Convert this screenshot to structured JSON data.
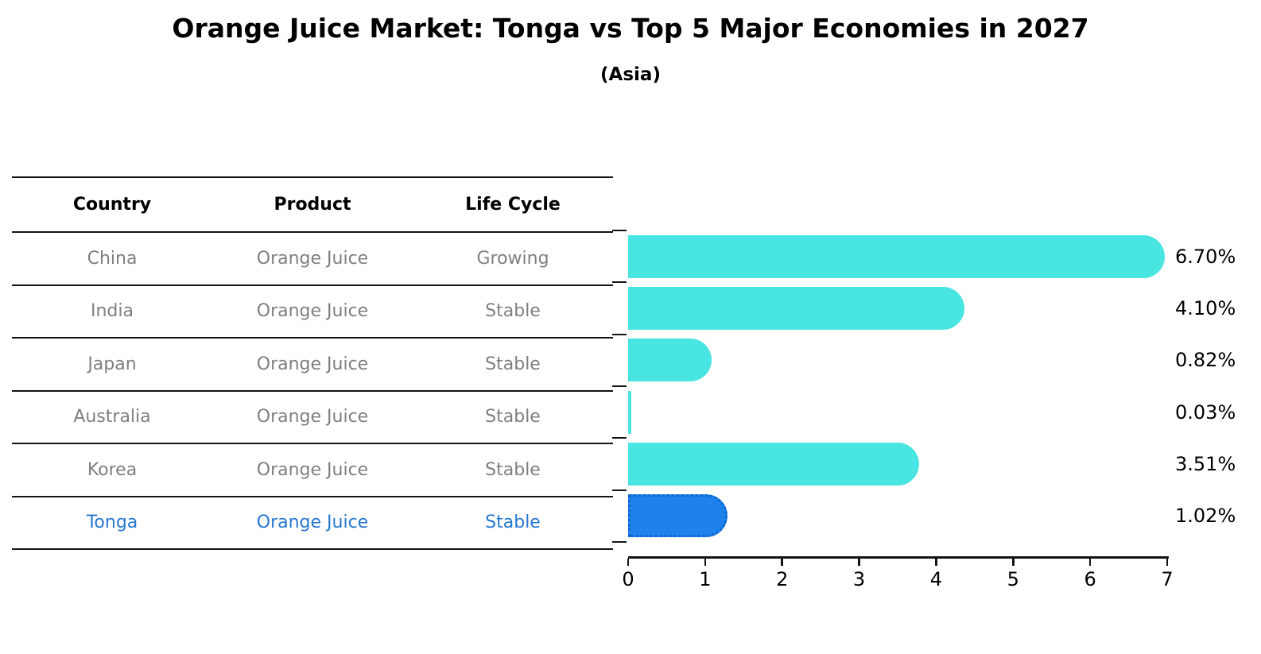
{
  "title": "Orange Juice Market: Tonga vs Top 5 Major Economies in 2027",
  "subtitle": "(Asia)",
  "table": {
    "headers": [
      "Country",
      "Product",
      "Life Cycle"
    ],
    "rows": [
      {
        "country": "China",
        "product": "Orange Juice",
        "life_cycle": "Growing",
        "highlight": false
      },
      {
        "country": "India",
        "product": "Orange Juice",
        "life_cycle": "Stable",
        "highlight": false
      },
      {
        "country": "Japan",
        "product": "Orange Juice",
        "life_cycle": "Stable",
        "highlight": false
      },
      {
        "country": "Australia",
        "product": "Orange Juice",
        "life_cycle": "Stable",
        "highlight": false
      },
      {
        "country": "Korea",
        "product": "Orange Juice",
        "life_cycle": "Stable",
        "highlight": false
      },
      {
        "country": "Tonga",
        "product": "Orange Juice",
        "life_cycle": "Stable",
        "highlight": true
      }
    ]
  },
  "chart_data": {
    "type": "bar",
    "orientation": "horizontal",
    "categories": [
      "China",
      "India",
      "Japan",
      "Australia",
      "Korea",
      "Tonga"
    ],
    "values": [
      6.7,
      4.1,
      0.82,
      0.03,
      3.51,
      1.02
    ],
    "value_labels": [
      "6.70%",
      "4.10%",
      "0.82%",
      "0.03%",
      "3.51%",
      "1.02%"
    ],
    "highlight_index": 5,
    "xlim": [
      0,
      7
    ],
    "x_ticks": [
      "0",
      "1",
      "2",
      "3",
      "4",
      "5",
      "6",
      "7"
    ],
    "grid": false,
    "legend": false,
    "bar_color": "#48e5e1",
    "highlight_bar_color": "#1e82ec",
    "highlight_bar_border_color": "#0f65cc",
    "highlight_text_color": "#2878d0",
    "text_color": "#7f7f7f"
  }
}
